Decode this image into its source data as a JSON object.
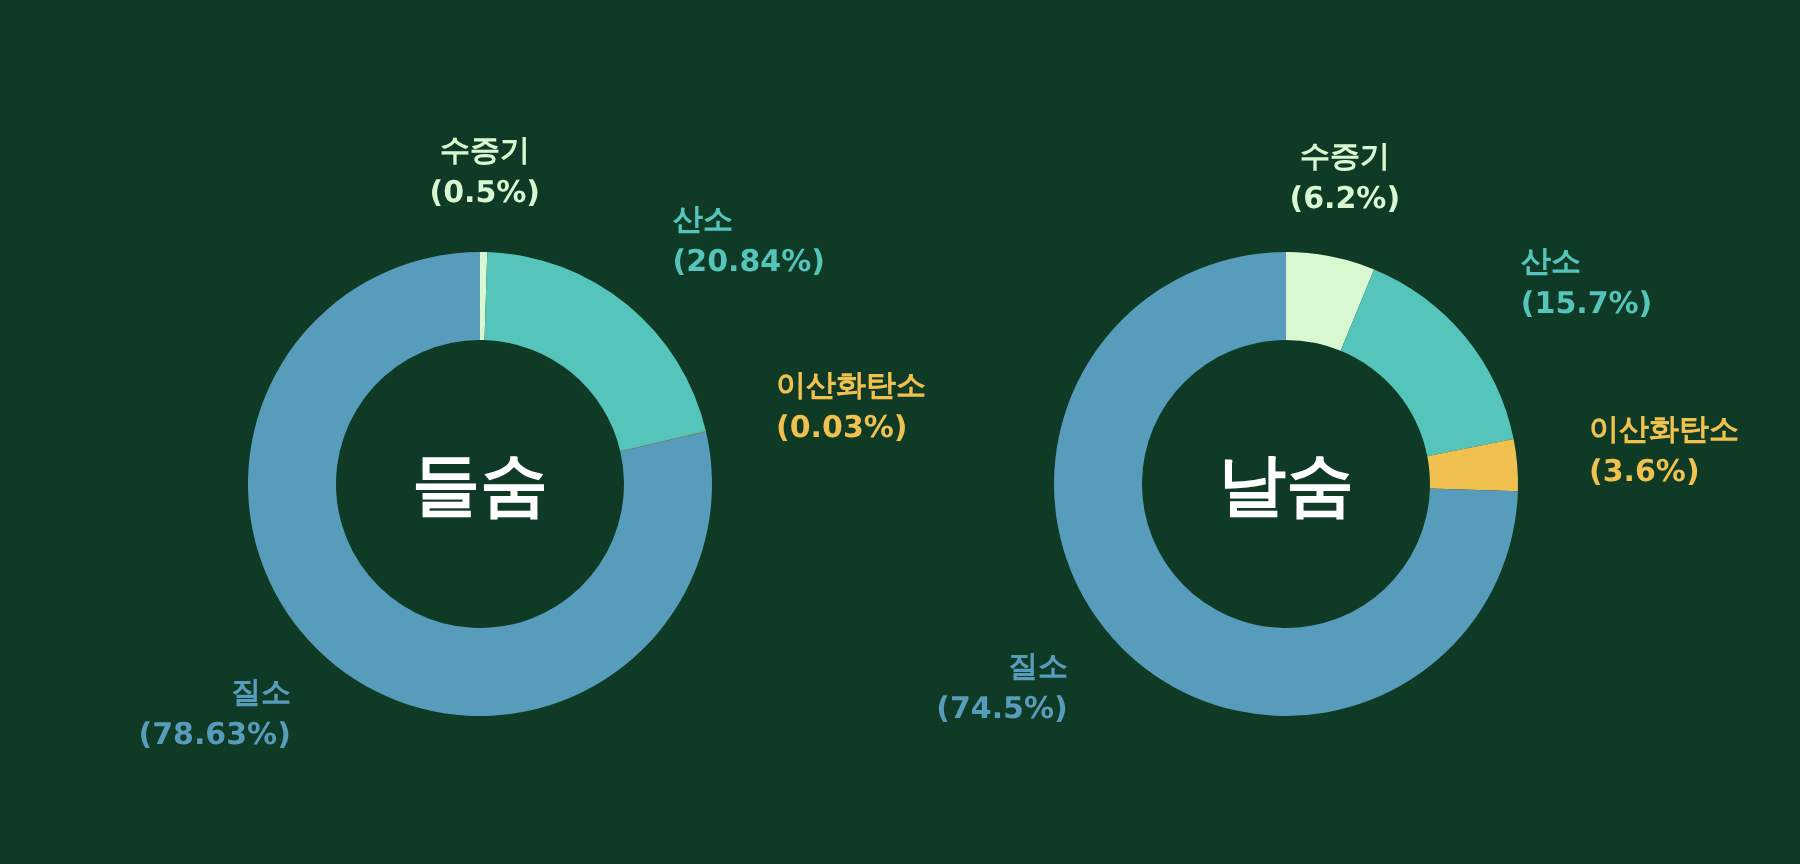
{
  "chart_data": [
    {
      "type": "donut",
      "title": "들숨",
      "categories": [
        "수증기",
        "산소",
        "이산화탄소",
        "질소"
      ],
      "values": [
        0.5,
        20.84,
        0.03,
        78.63
      ],
      "colors": [
        "#d9f7d0",
        "#55c4bb",
        "#f0c14f",
        "#579cba"
      ],
      "value_labels": [
        "(0.5%)",
        "(20.84%)",
        "(0.03%)",
        "(78.63%)"
      ]
    },
    {
      "type": "donut",
      "title": "날숨",
      "categories": [
        "수증기",
        "산소",
        "이산화탄소",
        "질소"
      ],
      "values": [
        6.2,
        15.7,
        3.6,
        74.5
      ],
      "colors": [
        "#d9f7d0",
        "#55c4bb",
        "#f0c14f",
        "#579cba"
      ],
      "value_labels": [
        "(6.2%)",
        "(15.7%)",
        "(3.6%)",
        "(74.5%)"
      ]
    }
  ]
}
